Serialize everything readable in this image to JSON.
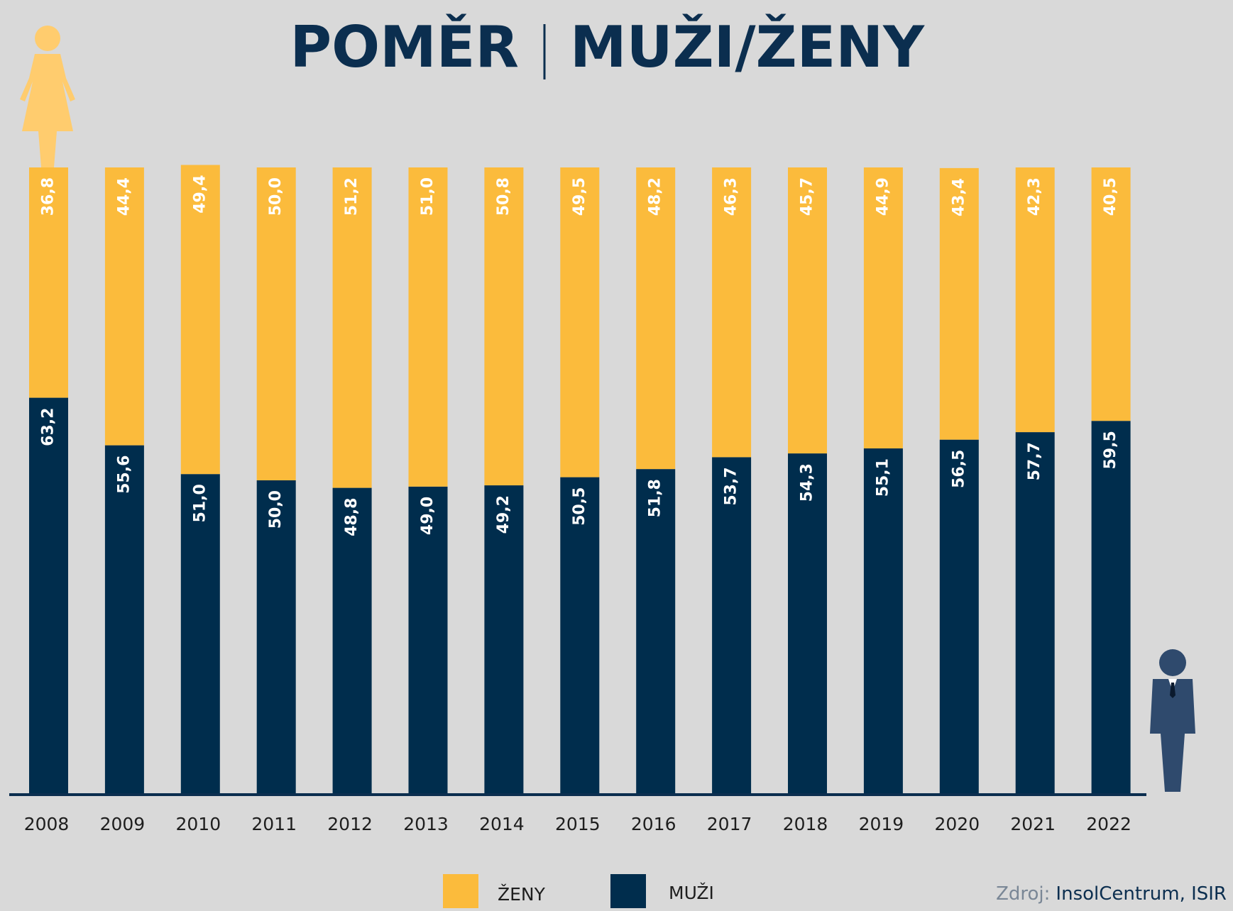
{
  "chart_data": {
    "type": "stacked_bar",
    "title": [
      "POMĚR",
      "MUŽI/ŽENY"
    ],
    "categories": [
      "2008",
      "2009",
      "2010",
      "2011",
      "2012",
      "2013",
      "2014",
      "2015",
      "2016",
      "2017",
      "2018",
      "2019",
      "2020",
      "2021",
      "2022"
    ],
    "ylim": [
      0,
      100
    ],
    "legend": "bottom",
    "series": [
      {
        "name": "ŽENY",
        "color": "#fbbb3c",
        "values": [
          36.8,
          44.4,
          49.4,
          50.0,
          51.2,
          51.0,
          50.8,
          49.5,
          48.2,
          46.3,
          45.7,
          44.9,
          43.4,
          42.3,
          40.5
        ],
        "value_labels": [
          "36,8",
          "44,4",
          "49,4",
          "50,0",
          "51,2",
          "51,0",
          "50,8",
          "49,5",
          "48,2",
          "46,3",
          "45,7",
          "44,9",
          "43,4",
          "42,3",
          "40,5"
        ]
      },
      {
        "name": "MUŽI",
        "color": "#002d4d",
        "values": [
          63.2,
          55.6,
          51.0,
          50.0,
          48.8,
          49.0,
          49.2,
          50.5,
          51.8,
          53.7,
          54.3,
          55.1,
          56.5,
          57.7,
          59.5
        ],
        "value_labels": [
          "63,2",
          "55,6",
          "51,0",
          "50,0",
          "48,8",
          "49,0",
          "49,2",
          "50,5",
          "51,8",
          "53,7",
          "54,3",
          "55,1",
          "56,5",
          "57,7",
          "59,5"
        ]
      }
    ],
    "source": {
      "label": "Zdroj:",
      "text": "InsolCentrum, ISIR"
    }
  }
}
